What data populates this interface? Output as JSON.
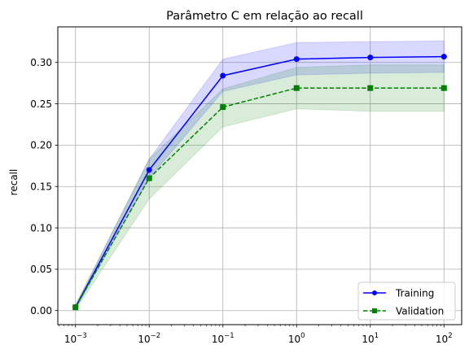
{
  "chart_data": {
    "type": "line",
    "title": "Parâmetro C em relação ao recall",
    "xlabel": "",
    "ylabel": "recall",
    "x_scale": "log",
    "x": [
      0.001,
      0.01,
      0.1,
      1,
      10,
      100
    ],
    "x_tick_labels": [
      {
        "base": "10",
        "exp": "−3"
      },
      {
        "base": "10",
        "exp": "−2"
      },
      {
        "base": "10",
        "exp": "−1"
      },
      {
        "base": "10",
        "exp": "0"
      },
      {
        "base": "10",
        "exp": "1"
      },
      {
        "base": "10",
        "exp": "2"
      }
    ],
    "y_ticks": [
      0.0,
      0.05,
      0.1,
      0.15,
      0.2,
      0.25,
      0.3
    ],
    "y_tick_labels": [
      "0.00",
      "0.05",
      "0.10",
      "0.15",
      "0.20",
      "0.25",
      "0.30"
    ],
    "ylim": [
      -0.017,
      0.343
    ],
    "grid": true,
    "legend_position": "lower-right",
    "series": [
      {
        "name": "Training",
        "color": "#0000ff",
        "linestyle": "solid",
        "marker": "circle",
        "values": [
          0.004,
          0.17,
          0.284,
          0.304,
          0.306,
          0.307
        ],
        "band_lower": [
          0.002,
          0.16,
          0.265,
          0.285,
          0.287,
          0.288
        ],
        "band_upper": [
          0.006,
          0.183,
          0.304,
          0.324,
          0.325,
          0.326
        ]
      },
      {
        "name": "Validation",
        "color": "#008000",
        "linestyle": "dashed",
        "marker": "square",
        "values": [
          0.004,
          0.16,
          0.246,
          0.269,
          0.269,
          0.269
        ],
        "band_lower": [
          0.001,
          0.135,
          0.222,
          0.244,
          0.241,
          0.241
        ],
        "band_upper": [
          0.007,
          0.183,
          0.268,
          0.294,
          0.297,
          0.297
        ]
      }
    ]
  }
}
